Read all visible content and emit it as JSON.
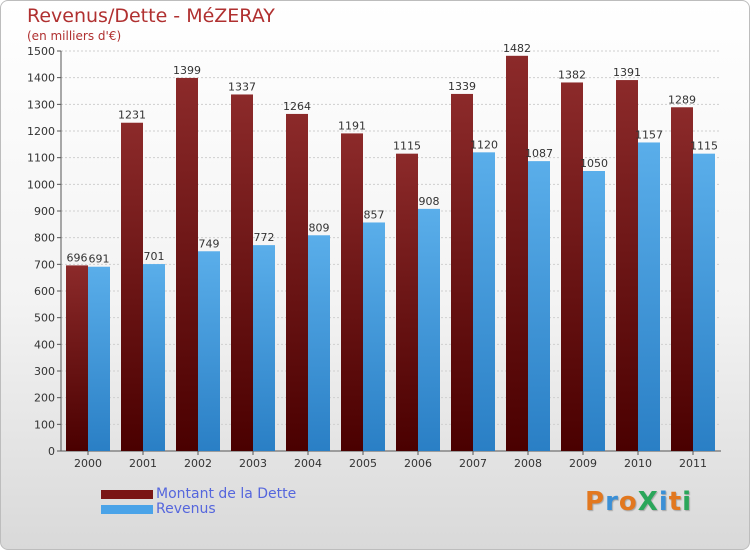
{
  "chart_data": {
    "type": "bar",
    "title": "Revenus/Dette - MéZERAY",
    "subtitle": "(en milliers d'€)",
    "categories": [
      "2000",
      "2001",
      "2002",
      "2003",
      "2004",
      "2005",
      "2006",
      "2007",
      "2008",
      "2009",
      "2010",
      "2011"
    ],
    "series": [
      {
        "name": "Montant de la Dette",
        "color": "#7a1515",
        "values": [
          696,
          1231,
          1399,
          1337,
          1264,
          1191,
          1115,
          1339,
          1482,
          1382,
          1391,
          1289
        ]
      },
      {
        "name": "Revenus",
        "color": "#4aa3e8",
        "values": [
          691,
          701,
          749,
          772,
          809,
          857,
          908,
          1120,
          1087,
          1050,
          1157,
          1115
        ]
      }
    ],
    "ylim": [
      0,
      1500
    ],
    "yticks": [
      0,
      100,
      200,
      300,
      400,
      500,
      600,
      700,
      800,
      900,
      1000,
      1100,
      1200,
      1300,
      1400,
      1500
    ],
    "grid": true,
    "legend_position": "bottom-left"
  },
  "brand": {
    "text": "ProXiti"
  }
}
